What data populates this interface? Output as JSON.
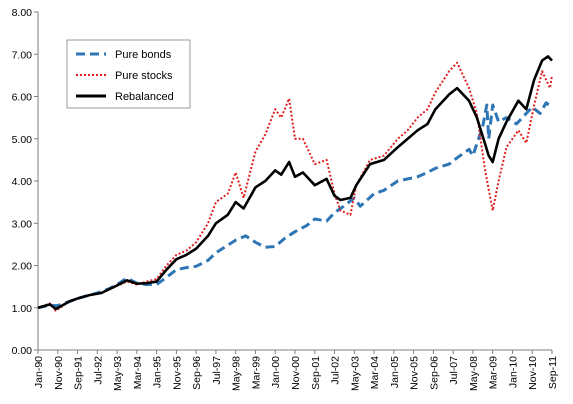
{
  "chart_data": {
    "type": "line",
    "title": "",
    "xlabel": "",
    "ylabel": "",
    "ylim": [
      0,
      8
    ],
    "yticks": [
      "0.00",
      "1.00",
      "2.00",
      "3.00",
      "4.00",
      "5.00",
      "6.00",
      "7.00",
      "8.00"
    ],
    "xticks": [
      "Jan-90",
      "Nov-90",
      "Sep-91",
      "Jul-92",
      "May-93",
      "Mar-94",
      "Jan-95",
      "Nov-95",
      "Sep-96",
      "Jul-97",
      "May-98",
      "Mar-99",
      "Jan-00",
      "Nov-00",
      "Sep-01",
      "Jul-02",
      "May-03",
      "Mar-04",
      "Jan-05",
      "Nov-05",
      "Sep-06",
      "Jul-07",
      "May-08",
      "Mar-09",
      "Jan-10",
      "Nov-10",
      "Sep-11"
    ],
    "grid": false,
    "legend": "top-left",
    "series": [
      {
        "name": "Pure bonds",
        "color": "#2E75B6",
        "style": "dashed",
        "points": [
          [
            "1990-01",
            1.0
          ],
          [
            "1990-06",
            1.05
          ],
          [
            "1990-11",
            1.05
          ],
          [
            "1991-05",
            1.15
          ],
          [
            "1991-09",
            1.22
          ],
          [
            "1992-03",
            1.3
          ],
          [
            "1992-07",
            1.35
          ],
          [
            "1993-01",
            1.45
          ],
          [
            "1993-05",
            1.55
          ],
          [
            "1993-10",
            1.7
          ],
          [
            "1994-03",
            1.58
          ],
          [
            "1994-08",
            1.55
          ],
          [
            "1995-01",
            1.55
          ],
          [
            "1995-06",
            1.72
          ],
          [
            "1995-11",
            1.9
          ],
          [
            "1996-04",
            1.95
          ],
          [
            "1996-09",
            1.98
          ],
          [
            "1997-03",
            2.12
          ],
          [
            "1997-07",
            2.3
          ],
          [
            "1998-01",
            2.48
          ],
          [
            "1998-05",
            2.6
          ],
          [
            "1998-10",
            2.7
          ],
          [
            "1999-03",
            2.55
          ],
          [
            "1999-08",
            2.43
          ],
          [
            "2000-01",
            2.45
          ],
          [
            "2000-06",
            2.65
          ],
          [
            "2000-11",
            2.8
          ],
          [
            "2001-05",
            2.95
          ],
          [
            "2001-09",
            3.1
          ],
          [
            "2002-03",
            3.05
          ],
          [
            "2002-07",
            3.25
          ],
          [
            "2002-11",
            3.38
          ],
          [
            "2003-05",
            3.6
          ],
          [
            "2003-08",
            3.4
          ],
          [
            "2004-03",
            3.7
          ],
          [
            "2004-08",
            3.78
          ],
          [
            "2005-03",
            4.0
          ],
          [
            "2005-08",
            4.05
          ],
          [
            "2006-01",
            4.1
          ],
          [
            "2006-06",
            4.2
          ],
          [
            "2006-10",
            4.3
          ],
          [
            "2007-05",
            4.4
          ],
          [
            "2007-09",
            4.55
          ],
          [
            "2008-03",
            4.75
          ],
          [
            "2008-05",
            4.6
          ],
          [
            "2008-10",
            5.3
          ],
          [
            "2008-12",
            5.8
          ],
          [
            "2009-01",
            5.0
          ],
          [
            "2009-03",
            5.8
          ],
          [
            "2009-06",
            5.4
          ],
          [
            "2009-10",
            5.5
          ],
          [
            "2010-03",
            5.35
          ],
          [
            "2010-08",
            5.6
          ],
          [
            "2010-11",
            5.75
          ],
          [
            "2011-03",
            5.6
          ],
          [
            "2011-06",
            5.85
          ],
          [
            "2011-09",
            5.75
          ]
        ]
      },
      {
        "name": "Pure stocks",
        "color": "#E02020",
        "style": "dotted",
        "points": [
          [
            "1990-01",
            1.0
          ],
          [
            "1990-07",
            1.1
          ],
          [
            "1990-10",
            0.93
          ],
          [
            "1991-05",
            1.15
          ],
          [
            "1991-09",
            1.22
          ],
          [
            "1992-03",
            1.3
          ],
          [
            "1992-09",
            1.35
          ],
          [
            "1993-05",
            1.52
          ],
          [
            "1993-10",
            1.62
          ],
          [
            "1994-03",
            1.55
          ],
          [
            "1994-08",
            1.62
          ],
          [
            "1995-01",
            1.68
          ],
          [
            "1995-06",
            2.0
          ],
          [
            "1995-11",
            2.25
          ],
          [
            "1996-04",
            2.35
          ],
          [
            "1996-09",
            2.55
          ],
          [
            "1997-03",
            3.0
          ],
          [
            "1997-07",
            3.5
          ],
          [
            "1998-01",
            3.7
          ],
          [
            "1998-05",
            4.2
          ],
          [
            "1998-09",
            3.6
          ],
          [
            "1999-03",
            4.7
          ],
          [
            "1999-08",
            5.1
          ],
          [
            "2000-01",
            5.7
          ],
          [
            "2000-04",
            5.5
          ],
          [
            "2000-08",
            5.95
          ],
          [
            "2000-11",
            5.0
          ],
          [
            "2001-03",
            5.0
          ],
          [
            "2001-09",
            4.4
          ],
          [
            "2002-03",
            4.5
          ],
          [
            "2002-07",
            3.7
          ],
          [
            "2002-10",
            3.3
          ],
          [
            "2003-03",
            3.2
          ],
          [
            "2003-06",
            3.9
          ],
          [
            "2004-01",
            4.5
          ],
          [
            "2004-08",
            4.6
          ],
          [
            "2005-03",
            5.0
          ],
          [
            "2005-08",
            5.2
          ],
          [
            "2006-01",
            5.5
          ],
          [
            "2006-06",
            5.7
          ],
          [
            "2006-10",
            6.1
          ],
          [
            "2007-05",
            6.6
          ],
          [
            "2007-09",
            6.8
          ],
          [
            "2008-03",
            6.2
          ],
          [
            "2008-07",
            5.6
          ],
          [
            "2008-11",
            4.3
          ],
          [
            "2009-01",
            3.8
          ],
          [
            "2009-03",
            3.3
          ],
          [
            "2009-06",
            4.0
          ],
          [
            "2009-10",
            4.8
          ],
          [
            "2010-04",
            5.2
          ],
          [
            "2010-08",
            4.9
          ],
          [
            "2010-12",
            5.8
          ],
          [
            "2011-04",
            6.6
          ],
          [
            "2011-08",
            6.2
          ],
          [
            "2011-09",
            6.5
          ]
        ]
      },
      {
        "name": "Rebalanced",
        "color": "#000000",
        "style": "solid",
        "points": [
          [
            "1990-01",
            1.0
          ],
          [
            "1990-07",
            1.08
          ],
          [
            "1990-10",
            0.97
          ],
          [
            "1991-05",
            1.15
          ],
          [
            "1991-09",
            1.22
          ],
          [
            "1992-03",
            1.3
          ],
          [
            "1992-09",
            1.35
          ],
          [
            "1993-05",
            1.53
          ],
          [
            "1993-10",
            1.65
          ],
          [
            "1994-03",
            1.57
          ],
          [
            "1994-08",
            1.58
          ],
          [
            "1995-01",
            1.62
          ],
          [
            "1995-06",
            1.9
          ],
          [
            "1995-11",
            2.15
          ],
          [
            "1996-04",
            2.25
          ],
          [
            "1996-09",
            2.4
          ],
          [
            "1997-03",
            2.7
          ],
          [
            "1997-07",
            3.0
          ],
          [
            "1998-01",
            3.2
          ],
          [
            "1998-05",
            3.5
          ],
          [
            "1998-09",
            3.35
          ],
          [
            "1999-03",
            3.85
          ],
          [
            "1999-08",
            4.0
          ],
          [
            "2000-01",
            4.25
          ],
          [
            "2000-04",
            4.15
          ],
          [
            "2000-08",
            4.45
          ],
          [
            "2000-11",
            4.1
          ],
          [
            "2001-03",
            4.2
          ],
          [
            "2001-09",
            3.9
          ],
          [
            "2002-03",
            4.05
          ],
          [
            "2002-07",
            3.65
          ],
          [
            "2002-10",
            3.55
          ],
          [
            "2003-03",
            3.6
          ],
          [
            "2003-06",
            3.9
          ],
          [
            "2004-01",
            4.4
          ],
          [
            "2004-08",
            4.5
          ],
          [
            "2005-03",
            4.8
          ],
          [
            "2005-08",
            5.0
          ],
          [
            "2006-01",
            5.2
          ],
          [
            "2006-06",
            5.35
          ],
          [
            "2006-10",
            5.7
          ],
          [
            "2007-05",
            6.05
          ],
          [
            "2007-09",
            6.2
          ],
          [
            "2008-03",
            5.9
          ],
          [
            "2008-07",
            5.5
          ],
          [
            "2008-11",
            4.9
          ],
          [
            "2009-01",
            4.6
          ],
          [
            "2009-03",
            4.45
          ],
          [
            "2009-06",
            5.0
          ],
          [
            "2009-10",
            5.4
          ],
          [
            "2010-04",
            5.9
          ],
          [
            "2010-08",
            5.7
          ],
          [
            "2010-12",
            6.4
          ],
          [
            "2011-04",
            6.85
          ],
          [
            "2011-07",
            6.95
          ],
          [
            "2011-09",
            6.85
          ]
        ]
      }
    ]
  }
}
